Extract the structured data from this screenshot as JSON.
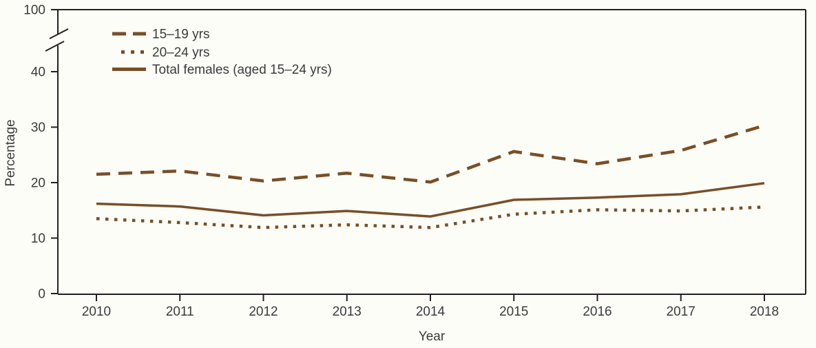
{
  "page": {
    "background": "#fdfdf8"
  },
  "chart_data": {
    "type": "line",
    "title": "",
    "xlabel": "Year",
    "ylabel": "Percentage",
    "x": [
      2010,
      2011,
      2012,
      2013,
      2014,
      2015,
      2016,
      2017,
      2018
    ],
    "series": [
      {
        "name": "15–19 yrs",
        "style": "dashed",
        "values": [
          21.5,
          22.1,
          20.3,
          21.7,
          20.1,
          25.6,
          23.4,
          25.8,
          30.3
        ]
      },
      {
        "name": "20–24 yrs",
        "style": "dotted",
        "values": [
          13.5,
          12.8,
          11.9,
          12.4,
          11.9,
          14.3,
          15.1,
          14.9,
          15.6
        ]
      },
      {
        "name": "Total females (aged 15–24 yrs)",
        "style": "solid",
        "values": [
          16.2,
          15.7,
          14.1,
          14.9,
          13.9,
          16.9,
          17.3,
          17.9,
          19.9
        ]
      }
    ],
    "y_axis": {
      "ticks": [
        0,
        10,
        20,
        30,
        40,
        100
      ],
      "visible_range": [
        0,
        40
      ],
      "axis_break_between": [
        40,
        100
      ],
      "axis_break": true,
      "grid": false
    },
    "x_axis": {
      "ticks": [
        "2010",
        "2011",
        "2012",
        "2013",
        "2014",
        "2015",
        "2016",
        "2017",
        "2018"
      ]
    },
    "legend_position": "top-left-inside",
    "colors": {
      "line": "#7a4e26",
      "axis": "#231f20",
      "text": "#3a3a3a"
    }
  }
}
